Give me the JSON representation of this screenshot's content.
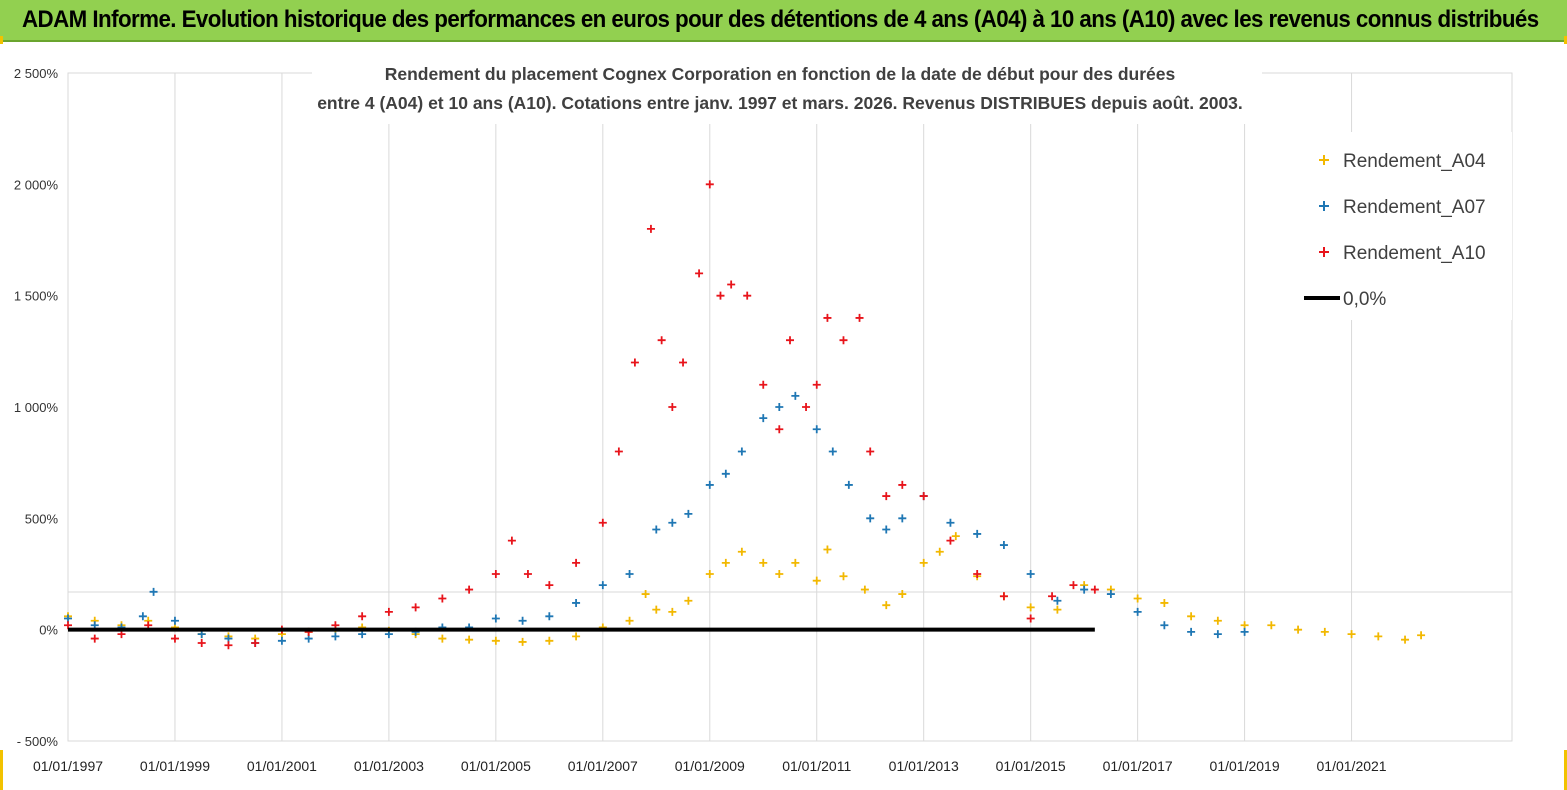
{
  "banner": {
    "title": "ADAM Informe. Evolution historique des performances en euros pour des détentions de 4 ans (A04) à 10 ans (A10) avec les revenus connus distribués"
  },
  "chart_data": {
    "type": "scatter",
    "title_lines": [
      "Rendement du placement Cognex Corporation en fonction de la date de début pour des durées",
      "entre 4 (A04) et 10 ans (A10). Cotations entre janv. 1997 et mars. 2026. Revenus DISTRIBUES depuis août. 2003."
    ],
    "x_unit": "year",
    "xlim": [
      1997.0,
      2024.0
    ],
    "ylim": [
      -500,
      2500
    ],
    "y_ticks": [
      {
        "value": 2500,
        "label": "2 500%"
      },
      {
        "value": 2000,
        "label": "2 000%"
      },
      {
        "value": 1500,
        "label": "1 500%"
      },
      {
        "value": 1000,
        "label": "1 000%"
      },
      {
        "value": 500,
        "label": "500%"
      },
      {
        "value": 0,
        "label": "0%"
      },
      {
        "value": -500,
        "label": "- 500%"
      }
    ],
    "x_ticks": [
      {
        "value": 1997,
        "label": "01/01/1997"
      },
      {
        "value": 1999,
        "label": "01/01/1999"
      },
      {
        "value": 2001,
        "label": "01/01/2001"
      },
      {
        "value": 2003,
        "label": "01/01/2003"
      },
      {
        "value": 2005,
        "label": "01/01/2005"
      },
      {
        "value": 2007,
        "label": "01/01/2007"
      },
      {
        "value": 2009,
        "label": "01/01/2009"
      },
      {
        "value": 2011,
        "label": "01/01/2011"
      },
      {
        "value": 2013,
        "label": "01/01/2013"
      },
      {
        "value": 2015,
        "label": "01/01/2015"
      },
      {
        "value": 2017,
        "label": "01/01/2017"
      },
      {
        "value": 2019,
        "label": "01/01/2019"
      },
      {
        "value": 2021,
        "label": "01/01/2021"
      }
    ],
    "grid": {
      "vertical": true,
      "horizontal": false
    },
    "legend_position": "top-right",
    "series": [
      {
        "name": "Rendement_A04",
        "color": "#f2b800",
        "marker": "plus",
        "x": [
          1997.0,
          1997.5,
          1998.0,
          1998.5,
          1999.0,
          1999.5,
          2000.0,
          2000.5,
          2001.0,
          2001.5,
          2002.0,
          2002.5,
          2003.0,
          2003.5,
          2004.0,
          2004.5,
          2005.0,
          2005.5,
          2006.0,
          2006.5,
          2007.0,
          2007.5,
          2007.8,
          2008.0,
          2008.3,
          2008.6,
          2009.0,
          2009.3,
          2009.6,
          2010.0,
          2010.3,
          2010.6,
          2011.0,
          2011.2,
          2011.5,
          2011.9,
          2012.3,
          2012.6,
          2013.0,
          2013.3,
          2013.6,
          2014.0,
          2014.5,
          2015.0,
          2015.5,
          2016.0,
          2016.5,
          2017.0,
          2017.5,
          2018.0,
          2018.5,
          2019.0,
          2019.5,
          2020.0,
          2020.5,
          2021.0,
          2021.5,
          2022.0,
          2022.3
        ],
        "y": [
          60,
          40,
          20,
          40,
          10,
          -20,
          -30,
          -40,
          -20,
          -10,
          0,
          10,
          -5,
          -20,
          -40,
          -45,
          -50,
          -55,
          -50,
          -30,
          10,
          40,
          160,
          90,
          80,
          130,
          250,
          300,
          350,
          300,
          250,
          300,
          220,
          360,
          240,
          180,
          110,
          160,
          300,
          350,
          420,
          240,
          150,
          100,
          90,
          200,
          180,
          140,
          120,
          60,
          40,
          20,
          20,
          0,
          -10,
          -20,
          -30,
          -45,
          -25
        ]
      },
      {
        "name": "Rendement_A07",
        "color": "#1f77b4",
        "marker": "plus",
        "x": [
          1997.0,
          1997.5,
          1998.0,
          1998.4,
          1998.6,
          1999.0,
          1999.5,
          2000.0,
          2000.5,
          2001.0,
          2001.5,
          2002.0,
          2002.5,
          2003.0,
          2003.5,
          2004.0,
          2004.5,
          2005.0,
          2005.5,
          2006.0,
          2006.5,
          2007.0,
          2007.5,
          2008.0,
          2008.3,
          2008.6,
          2009.0,
          2009.3,
          2009.6,
          2010.0,
          2010.3,
          2010.6,
          2011.0,
          2011.3,
          2011.6,
          2012.0,
          2012.3,
          2012.6,
          2013.0,
          2013.5,
          2014.0,
          2014.5,
          2015.0,
          2015.5,
          2016.0,
          2016.5,
          2017.0,
          2017.5,
          2018.0,
          2018.5,
          2019.0
        ],
        "y": [
          50,
          20,
          10,
          60,
          170,
          40,
          -20,
          -40,
          -60,
          -50,
          -40,
          -30,
          -20,
          -20,
          -10,
          10,
          10,
          50,
          40,
          60,
          120,
          200,
          250,
          450,
          480,
          520,
          650,
          700,
          800,
          950,
          1000,
          1050,
          900,
          800,
          650,
          500,
          450,
          500,
          600,
          480,
          430,
          380,
          250,
          130,
          180,
          160,
          80,
          20,
          -10,
          -20,
          -10
        ]
      },
      {
        "name": "Rendement_A10",
        "color": "#e8141b",
        "marker": "plus",
        "x": [
          1997.0,
          1997.5,
          1998.0,
          1998.5,
          1999.0,
          1999.5,
          2000.0,
          2000.5,
          2001.0,
          2001.5,
          2002.0,
          2002.5,
          2003.0,
          2003.5,
          2004.0,
          2004.5,
          2005.0,
          2005.3,
          2005.6,
          2006.0,
          2006.5,
          2007.0,
          2007.3,
          2007.6,
          2007.9,
          2008.1,
          2008.3,
          2008.5,
          2008.8,
          2009.0,
          2009.2,
          2009.4,
          2009.7,
          2010.0,
          2010.3,
          2010.5,
          2010.8,
          2011.0,
          2011.2,
          2011.5,
          2011.8,
          2012.0,
          2012.3,
          2012.6,
          2013.0,
          2013.5,
          2014.0,
          2014.5,
          2015.0,
          2015.4,
          2015.8,
          2016.2
        ],
        "y": [
          20,
          -40,
          -20,
          20,
          -40,
          -60,
          -70,
          -60,
          0,
          -10,
          20,
          60,
          80,
          100,
          140,
          180,
          250,
          400,
          250,
          200,
          300,
          480,
          800,
          1200,
          1800,
          1300,
          1000,
          1200,
          1600,
          2000,
          1500,
          1550,
          1500,
          1100,
          900,
          1300,
          1000,
          1100,
          1400,
          1300,
          1400,
          800,
          600,
          650,
          600,
          400,
          250,
          150,
          50,
          150,
          200,
          180
        ]
      },
      {
        "name": "0,0%",
        "color": "#000000",
        "marker": "line",
        "x": [
          1997.0,
          2016.2
        ],
        "y": [
          0,
          0
        ]
      }
    ]
  }
}
